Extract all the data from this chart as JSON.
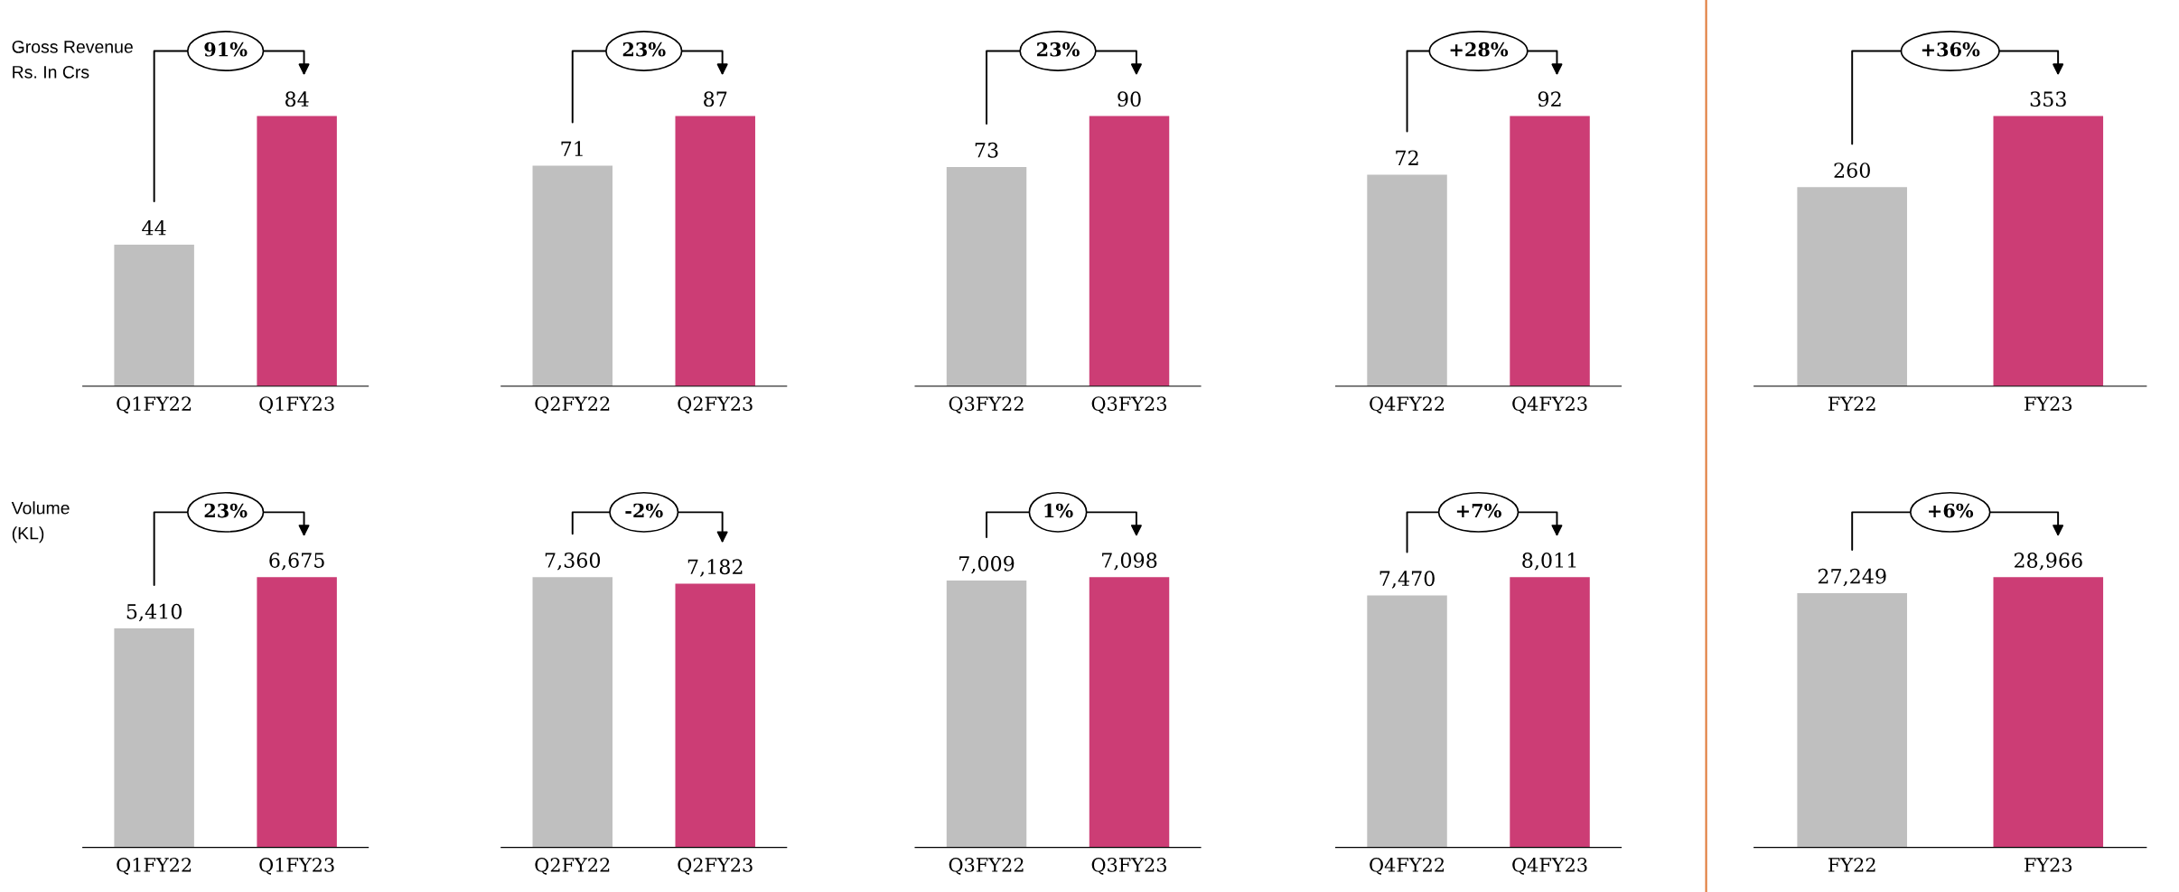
{
  "chart_data": [
    {
      "type": "bar",
      "ylabel": "Gross Revenue\nRs. In Crs",
      "categories": [
        "Q1FY22",
        "Q1FY23"
      ],
      "values": [
        44,
        84
      ],
      "colors": [
        "#bfbfbf",
        "#cc3d75"
      ],
      "value_labels": [
        "44",
        "84"
      ],
      "annotations": [
        "91%"
      ]
    },
    {
      "type": "bar",
      "categories": [
        "Q2FY22",
        "Q2FY23"
      ],
      "values": [
        71,
        87
      ],
      "colors": [
        "#bfbfbf",
        "#cc3d75"
      ],
      "value_labels": [
        "71",
        "87"
      ],
      "annotations": [
        "23%"
      ]
    },
    {
      "type": "bar",
      "categories": [
        "Q3FY22",
        "Q3FY23"
      ],
      "values": [
        73,
        90
      ],
      "colors": [
        "#bfbfbf",
        "#cc3d75"
      ],
      "value_labels": [
        "73",
        "90"
      ],
      "annotations": [
        "23%"
      ]
    },
    {
      "type": "bar",
      "categories": [
        "Q4FY22",
        "Q4FY23"
      ],
      "values": [
        72,
        92
      ],
      "colors": [
        "#bfbfbf",
        "#cc3d75"
      ],
      "value_labels": [
        "72",
        "92"
      ],
      "annotations": [
        "+28%"
      ]
    },
    {
      "type": "bar",
      "categories": [
        "FY22",
        "FY23"
      ],
      "values": [
        260,
        353
      ],
      "colors": [
        "#bfbfbf",
        "#cc3d75"
      ],
      "value_labels": [
        "260",
        "353"
      ],
      "annotations": [
        "+36%"
      ]
    },
    {
      "type": "bar",
      "ylabel": "Volume\n(KL)",
      "categories": [
        "Q1FY22",
        "Q1FY23"
      ],
      "values": [
        5410,
        6675
      ],
      "colors": [
        "#bfbfbf",
        "#cc3d75"
      ],
      "value_labels": [
        "5,410",
        "6,675"
      ],
      "annotations": [
        "23%"
      ]
    },
    {
      "type": "bar",
      "categories": [
        "Q2FY22",
        "Q2FY23"
      ],
      "values": [
        7360,
        7182
      ],
      "colors": [
        "#bfbfbf",
        "#cc3d75"
      ],
      "value_labels": [
        "7,360",
        "7,182"
      ],
      "annotations": [
        "-2%"
      ]
    },
    {
      "type": "bar",
      "categories": [
        "Q3FY22",
        "Q3FY23"
      ],
      "values": [
        7009,
        7098
      ],
      "colors": [
        "#bfbfbf",
        "#cc3d75"
      ],
      "value_labels": [
        "7,009",
        "7,098"
      ],
      "annotations": [
        "1%"
      ]
    },
    {
      "type": "bar",
      "categories": [
        "Q4FY22",
        "Q4FY23"
      ],
      "values": [
        7470,
        8011
      ],
      "colors": [
        "#bfbfbf",
        "#cc3d75"
      ],
      "value_labels": [
        "7,470",
        "8,011"
      ],
      "annotations": [
        "+7%"
      ]
    },
    {
      "type": "bar",
      "categories": [
        "FY22",
        "FY23"
      ],
      "values": [
        27249,
        28966
      ],
      "colors": [
        "#bfbfbf",
        "#cc3d75"
      ],
      "value_labels": [
        "27,249",
        "28,966"
      ],
      "annotations": [
        "+6%"
      ]
    }
  ]
}
